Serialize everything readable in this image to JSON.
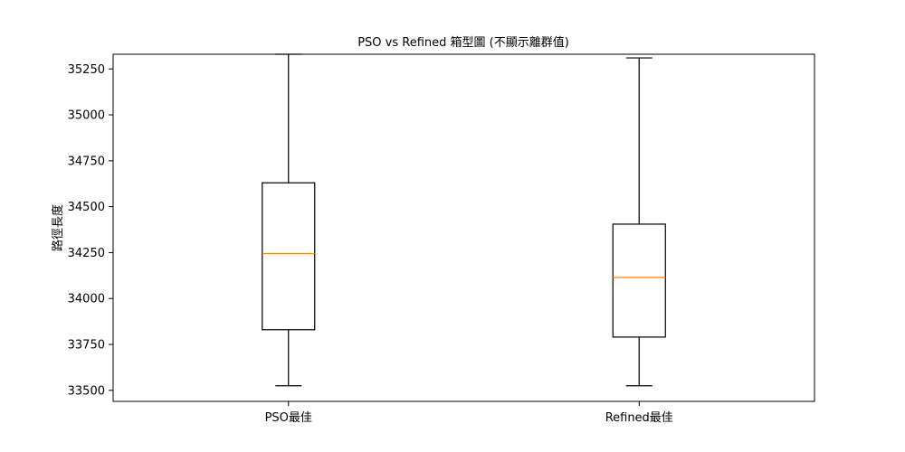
{
  "chart_data": {
    "type": "box",
    "title": "PSO vs Refined 箱型圖 (不顯示離群值)",
    "xlabel": "",
    "ylabel": "路徑長度",
    "ylim": [
      33440,
      35330
    ],
    "yticks": [
      33500,
      33750,
      34000,
      34250,
      34500,
      34750,
      35000,
      35250
    ],
    "categories": [
      "PSO最佳",
      "Refined最佳"
    ],
    "boxes": [
      {
        "name": "PSO最佳",
        "whisker_low": 33525,
        "q1": 33830,
        "median": 34245,
        "q3": 34630,
        "whisker_high": 35330
      },
      {
        "name": "Refined最佳",
        "whisker_low": 33525,
        "q1": 33790,
        "median": 34115,
        "q3": 34405,
        "whisker_high": 35310
      }
    ],
    "grid": false,
    "colors": {
      "box": "#000000",
      "median": "#ff7f0e"
    }
  }
}
